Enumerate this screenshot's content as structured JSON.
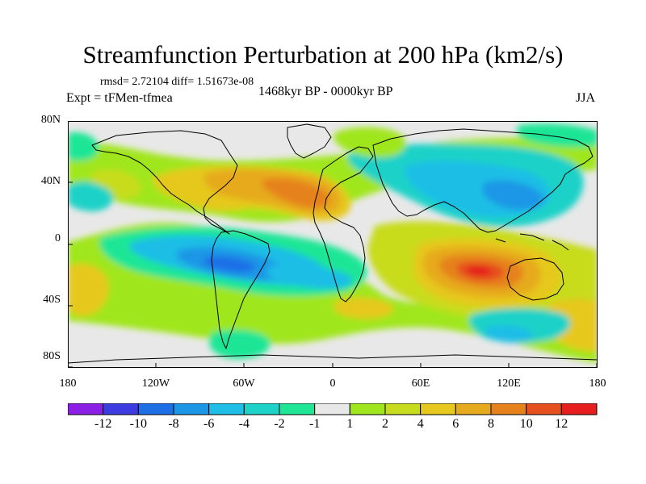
{
  "title": "Streamfunction Perturbation at 200 hPa (km2/s)",
  "stats_line": "rmsd= 2.72104 diff= 1.51673e-08",
  "period": "1468kyr BP - 0000kyr BP",
  "experiment": "Expt = tFMen-tfmea",
  "season": "JJA",
  "y_ticks": [
    "80N",
    "40N",
    "0",
    "40S",
    "80S"
  ],
  "x_ticks": [
    "180",
    "120W",
    "60W",
    "0",
    "60E",
    "120E",
    "180"
  ],
  "colorbar": {
    "colors": [
      "#8c1fe6",
      "#3c3ce0",
      "#1e6ee6",
      "#1e96e6",
      "#1ebee6",
      "#1ed2c8",
      "#1ee696",
      "#e8e8e8",
      "#a0e61e",
      "#c8dc1e",
      "#e6c81e",
      "#e6aa1e",
      "#e6821e",
      "#e6501e",
      "#e61e1e"
    ],
    "labels": [
      "-12",
      "-10",
      "-8",
      "-6",
      "-4",
      "-2",
      "-1",
      "1",
      "2",
      "4",
      "6",
      "8",
      "10",
      "12"
    ]
  }
}
